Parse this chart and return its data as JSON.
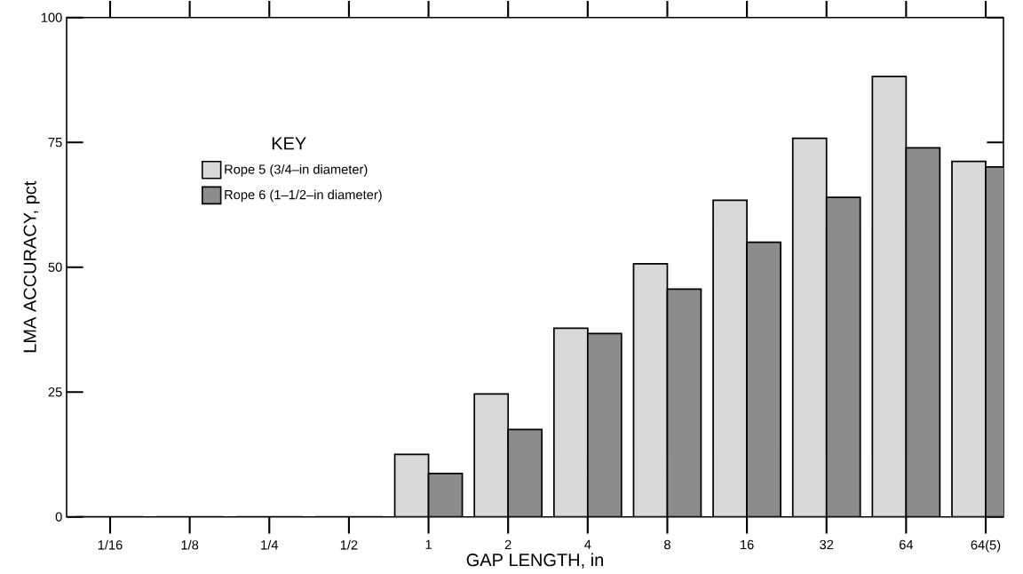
{
  "chart_data": {
    "type": "bar",
    "xlabel": "GAP LENGTH, in",
    "ylabel": "LMA ACCURACY, pct",
    "legend_title": "KEY",
    "categories": [
      "1/16",
      "1/8",
      "1/4",
      "1/2",
      "1",
      "2",
      "4",
      "8",
      "16",
      "32",
      "64",
      "64(5)"
    ],
    "series": [
      {
        "name": "Rope 5 (3/4–in diameter)",
        "color": "#d9d9d9",
        "values": [
          0,
          0,
          0,
          0,
          12.5,
          24.6,
          37.8,
          50.7,
          63.4,
          75.8,
          88.2,
          71.2
        ]
      },
      {
        "name": "Rope 6 (1–1/2–in diameter)",
        "color": "#8c8c8c",
        "values": [
          0,
          0,
          0,
          0,
          8.7,
          17.5,
          36.7,
          45.6,
          55,
          64,
          73.9,
          70.1
        ]
      }
    ],
    "ylim": [
      0,
      100
    ],
    "yticks": [
      0,
      25,
      50,
      75,
      100
    ],
    "legend": "top left"
  }
}
